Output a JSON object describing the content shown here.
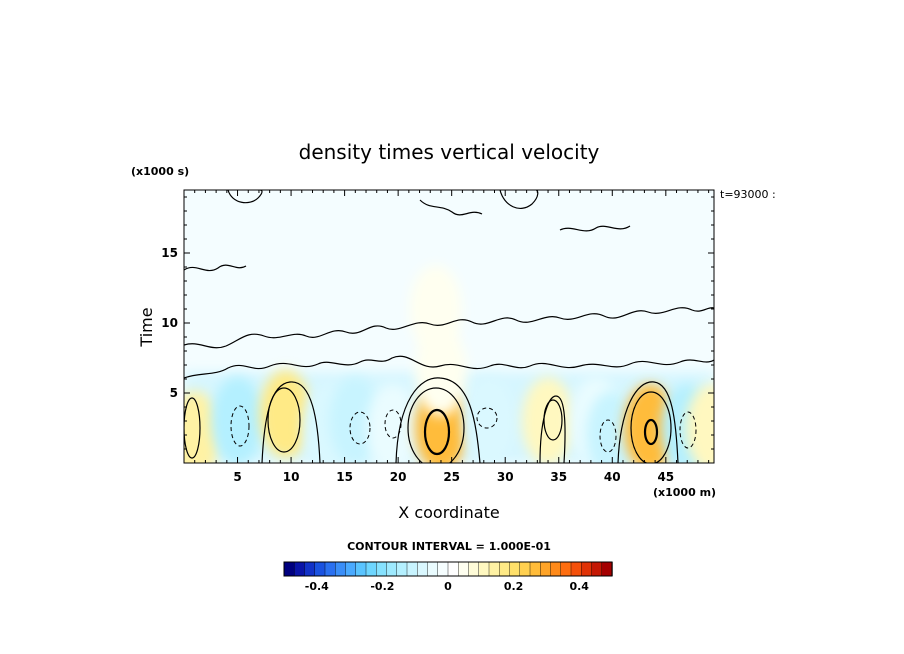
{
  "chart_data": {
    "type": "heatmap",
    "title": "density times vertical velocity",
    "xlabel": "X coordinate",
    "ylabel": "Time",
    "x_unit": "(x1000 m)",
    "y_unit": "(x1000 s)",
    "time_label": "t=93000 :",
    "xlim": [
      0,
      49.5
    ],
    "ylim": [
      0,
      19.5
    ],
    "x_ticks": [
      5,
      10,
      15,
      20,
      25,
      30,
      35,
      40,
      45
    ],
    "y_ticks": [
      5,
      10,
      15
    ],
    "contour_interval_label": "CONTOUR INTERVAL = 1.000E-01",
    "colorbar": {
      "range": [
        -0.5,
        0.5
      ],
      "tick_values": [
        -0.4,
        -0.2,
        0,
        0.2,
        0.4
      ],
      "tick_labels": [
        "-0.4",
        "-0.2",
        "0",
        "0.2",
        "0.4"
      ],
      "colors": [
        "#00007f",
        "#0a14a8",
        "#1232c8",
        "#1a52e0",
        "#2a70f0",
        "#3a8ef8",
        "#4aaaff",
        "#5ac4ff",
        "#6ed6ff",
        "#86e2ff",
        "#9eeaff",
        "#b4f0ff",
        "#c8f4ff",
        "#daf8ff",
        "#eafcff",
        "#f6feff",
        "#ffffff",
        "#fffff0",
        "#fffcd8",
        "#fff8c0",
        "#fff2a4",
        "#ffea86",
        "#ffe06a",
        "#ffd050",
        "#ffbc3a",
        "#ffa428",
        "#ff8a1a",
        "#ff6e10",
        "#f4500a",
        "#e03206",
        "#c41804",
        "#a40000"
      ]
    },
    "features": [
      {
        "x": 1.0,
        "y": 2.0,
        "value": 0.15
      },
      {
        "x": 5.0,
        "y": 3.0,
        "value": -0.15
      },
      {
        "x": 9.5,
        "y": 3.5,
        "value": 0.18
      },
      {
        "x": 13.5,
        "y": 2.5,
        "value": -0.08
      },
      {
        "x": 16.0,
        "y": 3.0,
        "value": -0.12
      },
      {
        "x": 19.5,
        "y": 2.5,
        "value": -0.05
      },
      {
        "x": 24.0,
        "y": 2.5,
        "value": 0.25
      },
      {
        "x": 28.5,
        "y": 3.0,
        "value": -0.08
      },
      {
        "x": 34.0,
        "y": 3.0,
        "value": 0.12
      },
      {
        "x": 38.5,
        "y": 3.0,
        "value": -0.05
      },
      {
        "x": 40.0,
        "y": 2.0,
        "value": -0.12
      },
      {
        "x": 43.5,
        "y": 2.5,
        "value": 0.25
      },
      {
        "x": 47.0,
        "y": 2.5,
        "value": -0.15
      },
      {
        "x": 49.3,
        "y": 2.5,
        "value": 0.12
      },
      {
        "x": 24.0,
        "y": 6.5,
        "value": 0.05
      },
      {
        "x": 23.5,
        "y": 11.0,
        "value": 0.06
      }
    ]
  }
}
